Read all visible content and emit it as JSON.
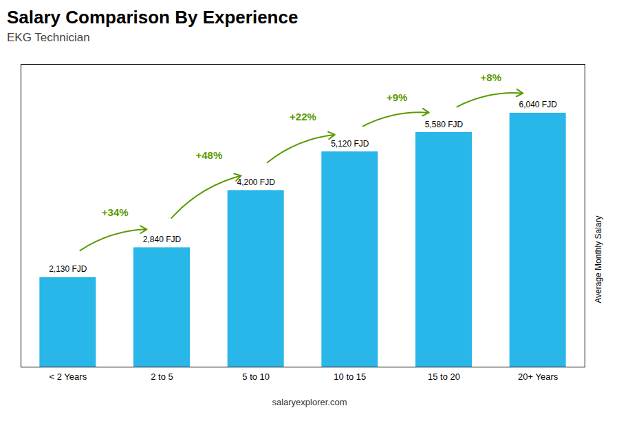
{
  "chart_data": {
    "type": "bar",
    "title": "Salary Comparison By Experience",
    "subtitle": "EKG Technician",
    "ylabel": "Average Monthly Salary",
    "caption": "salaryexplorer.com",
    "categories": [
      "< 2 Years",
      "2 to 5",
      "5 to 10",
      "10 to 15",
      "15 to 20",
      "20+ Years"
    ],
    "values": [
      2130,
      2840,
      4200,
      5120,
      5580,
      6040
    ],
    "value_labels": [
      "2,130 FJD",
      "2,840 FJD",
      "4,200 FJD",
      "5,120 FJD",
      "5,580 FJD",
      "6,040 FJD"
    ],
    "data_labels": true,
    "annotations": [
      "+34%",
      "+48%",
      "+22%",
      "+9%",
      "+8%"
    ],
    "color": "#29B6E8",
    "ylim": [
      0,
      7200
    ],
    "yticks": [],
    "tick_labels": "x",
    "grid": false
  }
}
